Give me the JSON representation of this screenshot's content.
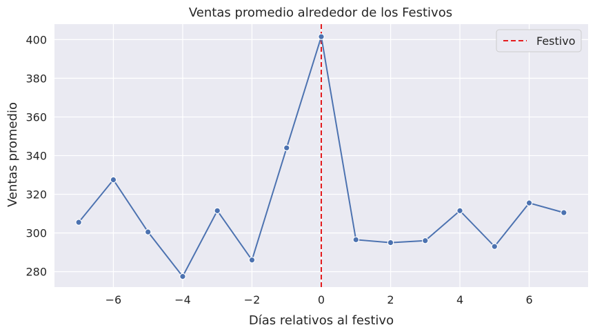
{
  "chart_data": {
    "type": "line",
    "title": "Ventas promedio alrededor de los Festivos",
    "xlabel": "Días relativos al festivo",
    "ylabel": "Ventas promedio",
    "x": [
      -7,
      -6,
      -5,
      -4,
      -3,
      -2,
      -1,
      0,
      1,
      2,
      3,
      4,
      5,
      6,
      7
    ],
    "series": [
      {
        "values": [
          305.5,
          327.5,
          300.5,
          277.5,
          311.5,
          286,
          344,
          401.5,
          296.5,
          295,
          296,
          311.5,
          293,
          315.5,
          310.5
        ],
        "color": "#4c72b0"
      }
    ],
    "xlim": [
      -7.7,
      7.7
    ],
    "ylim": [
      272,
      408
    ],
    "xticks": [
      -6,
      -4,
      -2,
      0,
      2,
      4,
      6
    ],
    "xtick_labels": [
      "−6",
      "−4",
      "−2",
      "0",
      "2",
      "4",
      "6"
    ],
    "yticks": [
      280,
      300,
      320,
      340,
      360,
      380,
      400
    ],
    "ytick_labels": [
      "280",
      "300",
      "320",
      "340",
      "360",
      "380",
      "400"
    ],
    "vline": {
      "x": 0,
      "label": "Festivo",
      "color": "#e41a1c",
      "style": "dashed"
    },
    "legend": {
      "placement": "top-right",
      "entries": [
        "Festivo"
      ]
    },
    "grid": true,
    "background": "#eaeaf2"
  }
}
